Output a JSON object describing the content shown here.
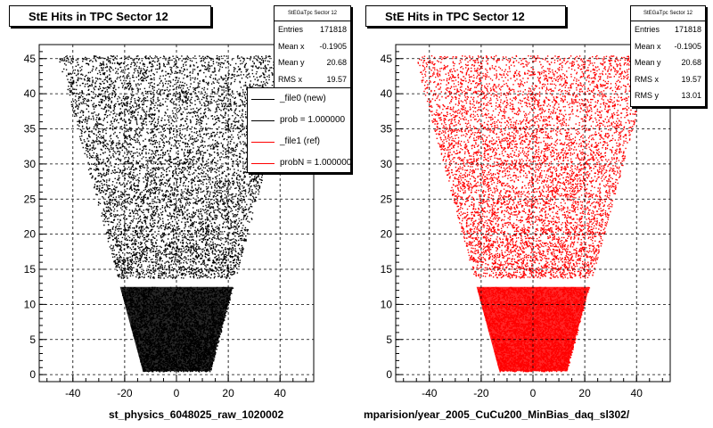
{
  "panels": [
    {
      "title": "StE Hits in TPC Sector 12",
      "stats": {
        "name": "StEGaTpc Sector 12",
        "rows": [
          {
            "label": "Entries",
            "value": "171818"
          },
          {
            "label": "Mean x",
            "value": "-0.1905"
          },
          {
            "label": "Mean y",
            "value": "20.68"
          },
          {
            "label": "RMS x",
            "value": "19.57"
          }
        ]
      },
      "legend": [
        {
          "label": "_file0 (new)",
          "color": "#000000"
        },
        {
          "label": "prob = 1.000000",
          "color": "#000000"
        },
        {
          "label": "_file1 (ref)",
          "color": "#ff0000"
        },
        {
          "label": "probN = 1.000000",
          "color": "#ff0000"
        }
      ],
      "footer": "st_physics_6048025_raw_1020002",
      "color": "#000000"
    },
    {
      "title": "StE Hits in TPC Sector 12",
      "stats": {
        "name": "StEGaTpc Sector 12",
        "rows": [
          {
            "label": "Entries",
            "value": "171818"
          },
          {
            "label": "Mean x",
            "value": "-0.1905"
          },
          {
            "label": "Mean y",
            "value": "20.68"
          },
          {
            "label": "RMS x",
            "value": "19.57"
          },
          {
            "label": "RMS y",
            "value": "13.01"
          }
        ]
      },
      "footer": "mparision/year_2005_CuCu200_MinBias_daq_sl302/",
      "color": "#ff0000"
    }
  ],
  "chart_data": [
    {
      "type": "scatter",
      "title": "StE Hits in TPC Sector 12",
      "xlim": [
        -53,
        53
      ],
      "ylim": [
        -1,
        47
      ],
      "xticks": [
        -40,
        -20,
        0,
        20,
        40
      ],
      "yticks": [
        0,
        5,
        10,
        15,
        20,
        25,
        30,
        35,
        40,
        45
      ],
      "grid": true,
      "series": [
        {
          "name": "_file0 (new)",
          "color": "#000000"
        }
      ],
      "region": {
        "y_bottom": 0.5,
        "y_top": 45.5,
        "x_half_bottom": 13,
        "x_half_top": 46,
        "gap_y": [
          12.5,
          13.8
        ]
      },
      "entries": 171818,
      "mean_x": -0.1905,
      "mean_y": 20.68,
      "rms_x": 19.57
    },
    {
      "type": "scatter",
      "title": "StE Hits in TPC Sector 12",
      "xlim": [
        -53,
        53
      ],
      "ylim": [
        -1,
        47
      ],
      "xticks": [
        -40,
        -20,
        0,
        20,
        40
      ],
      "yticks": [
        0,
        5,
        10,
        15,
        20,
        25,
        30,
        35,
        40,
        45
      ],
      "grid": true,
      "series": [
        {
          "name": "_file1 (ref)",
          "color": "#ff0000"
        }
      ],
      "region": {
        "y_bottom": 0.5,
        "y_top": 45.5,
        "x_half_bottom": 13,
        "x_half_top": 46,
        "gap_y": [
          12.5,
          13.8
        ]
      },
      "entries": 171818,
      "mean_x": -0.1905,
      "mean_y": 20.68,
      "rms_x": 19.57,
      "rms_y": 13.01
    }
  ]
}
